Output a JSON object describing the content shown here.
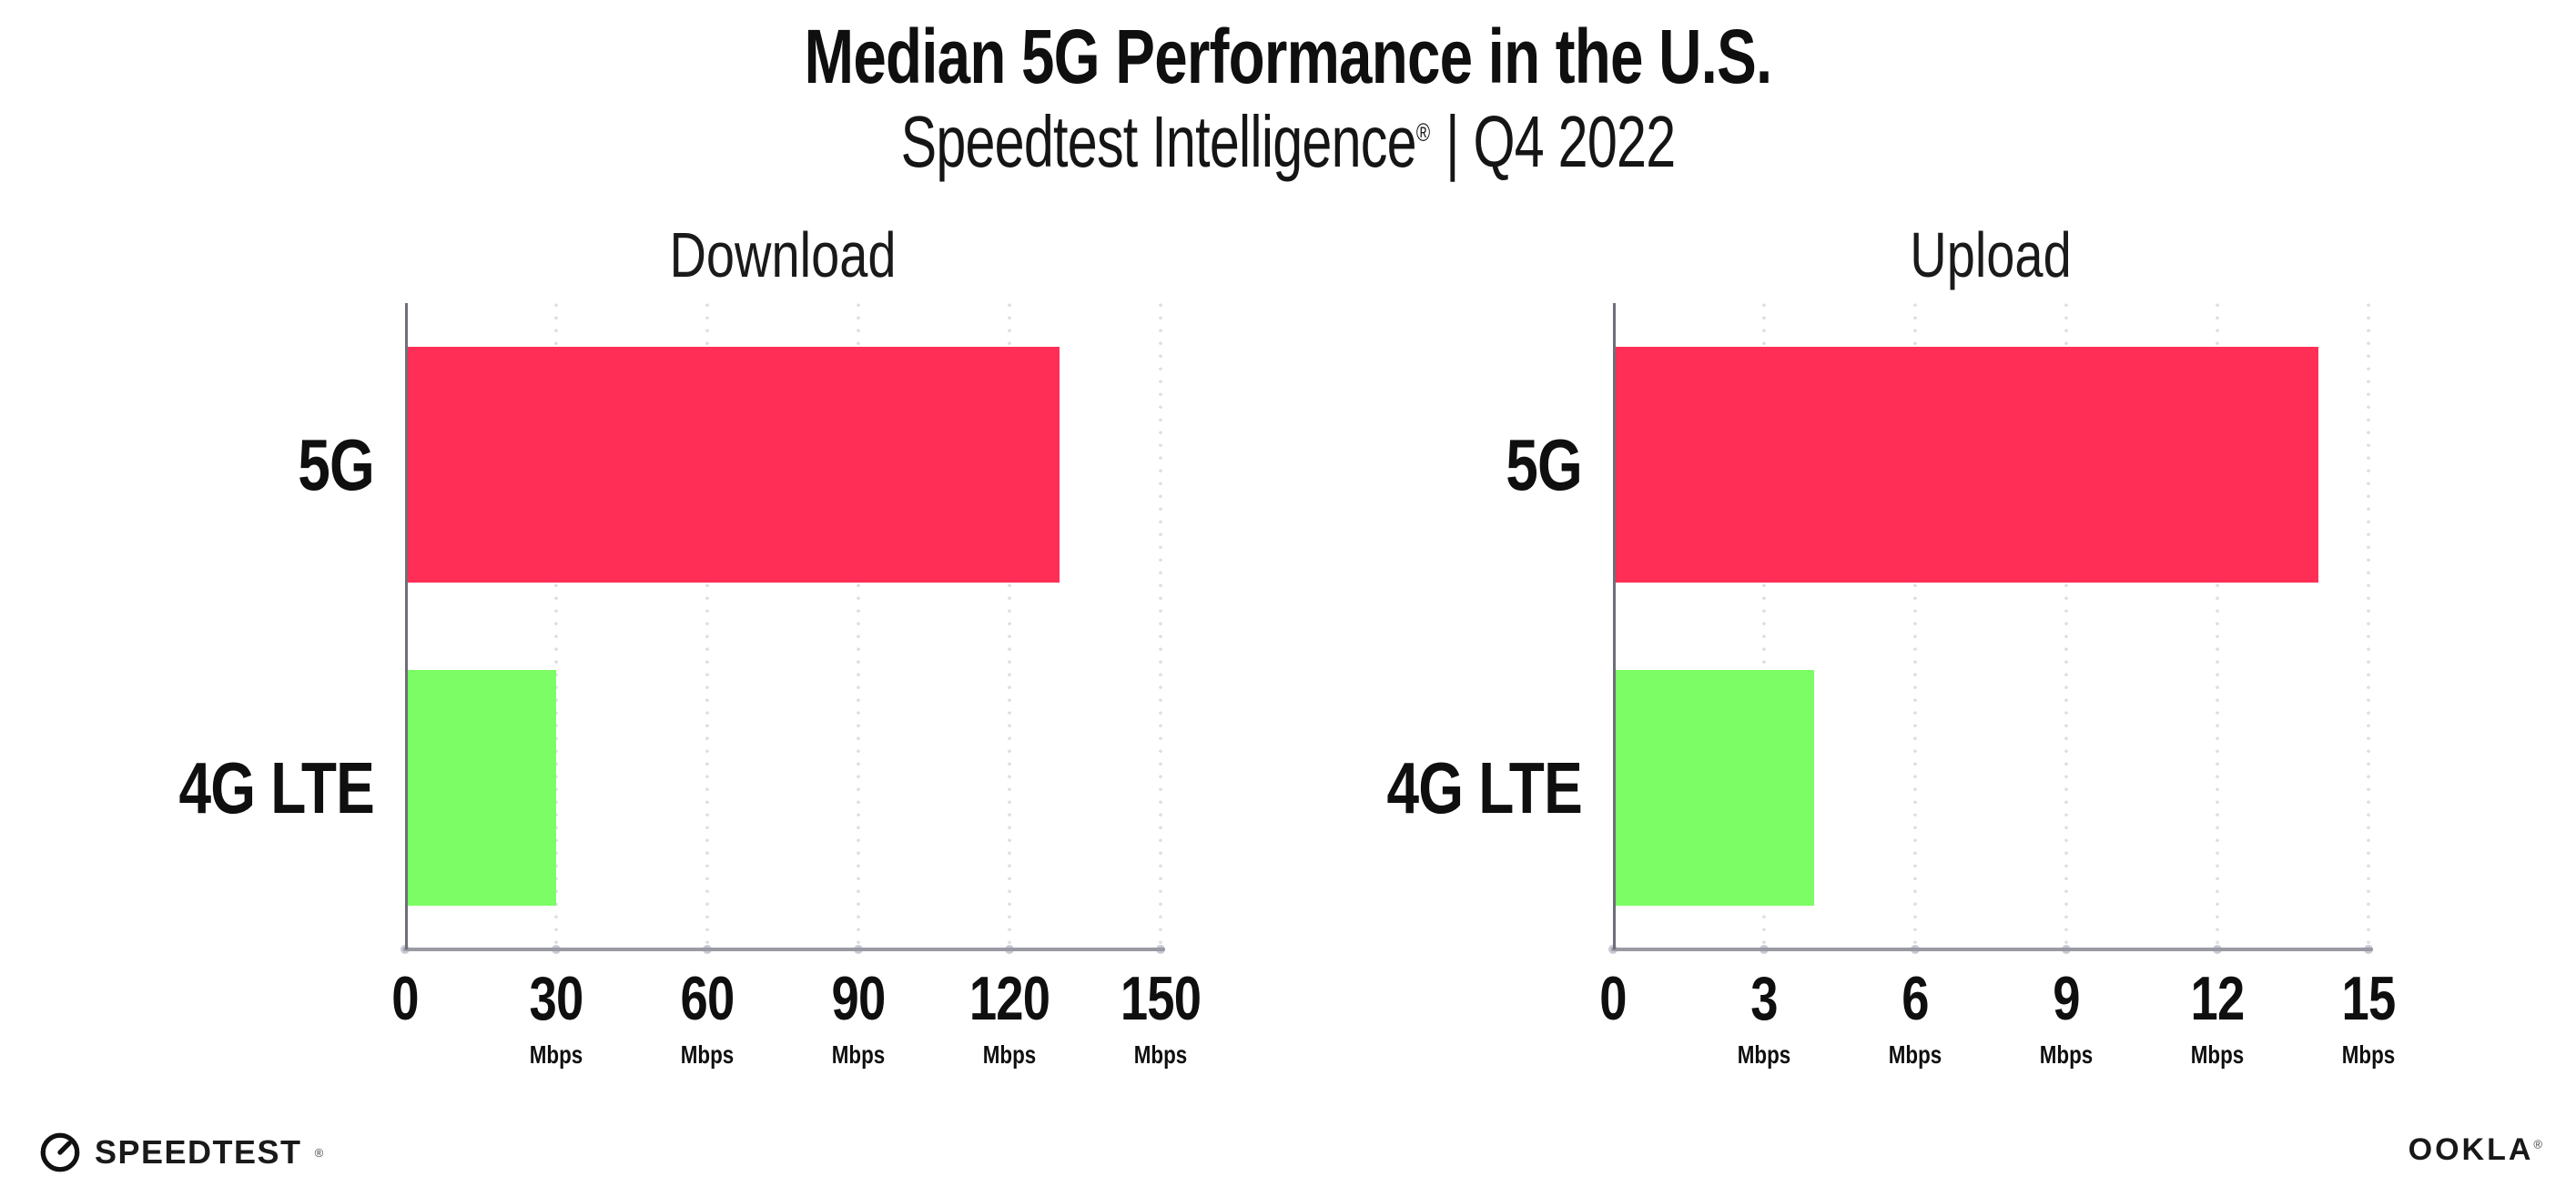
{
  "page": {
    "title": "Median 5G Performance in the U.S.",
    "subtitle_brand": "Speedtest Intelligence",
    "subtitle_reg": "®",
    "subtitle_rest": "| Q4 2022"
  },
  "chart_data": [
    {
      "type": "bar",
      "orientation": "horizontal",
      "title": "Download",
      "categories": [
        "5G",
        "4G LTE"
      ],
      "values": [
        130,
        30
      ],
      "unit": "Mbps",
      "xlim": [
        0,
        150
      ],
      "xticks": [
        0,
        30,
        60,
        90,
        120,
        150
      ],
      "tick_unit": "Mbps",
      "bar_colors": [
        "#FF2E56",
        "#7CFD65"
      ],
      "grid": "dotted vertical gridlines at each tick",
      "legend": "none"
    },
    {
      "type": "bar",
      "orientation": "horizontal",
      "title": "Upload",
      "categories": [
        "5G",
        "4G LTE"
      ],
      "values": [
        14,
        4
      ],
      "unit": "Mbps",
      "xlim": [
        0,
        15
      ],
      "xticks": [
        0,
        3,
        6,
        9,
        12,
        15
      ],
      "tick_unit": "Mbps",
      "bar_colors": [
        "#FF2E56",
        "#7CFD65"
      ],
      "grid": "dotted vertical gridlines at each tick",
      "legend": "none"
    }
  ],
  "colors": {
    "bar_5g": "#FF2E56",
    "bar_4g_lte": "#7CFD65",
    "axis": "#9A9AA4",
    "grid_dot": "#DFDFEA",
    "text": "#0F0F0F"
  },
  "footer": {
    "speedtest_label": "SPEEDTEST",
    "speedtest_mark": "®",
    "ookla_label": "OOKLA",
    "ookla_mark": "®"
  }
}
